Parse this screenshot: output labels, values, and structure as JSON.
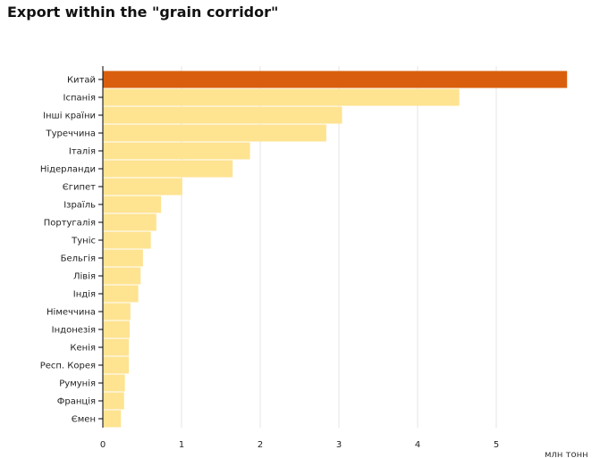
{
  "title": "Export within the \"grain corridor\"",
  "colors": {
    "highlight": "#d95f0e",
    "bar": "#fee391",
    "grid": "#e6e6e6",
    "axis": "#000000"
  },
  "chart_data": {
    "type": "bar",
    "orientation": "horizontal",
    "title": "Export within the \"grain corridor\"",
    "xlabel": "млн тонн",
    "ylabel": "",
    "xlim": [
      0,
      5.9
    ],
    "xticks": [
      0,
      1,
      2,
      3,
      4,
      5
    ],
    "grid": true,
    "categories": [
      "Китай",
      "Іспанія",
      "Інші країни",
      "Туреччина",
      "Італія",
      "Нідерланди",
      "Єгипет",
      "Ізраїль",
      "Португалія",
      "Туніс",
      "Бельгія",
      "Лівія",
      "Індія",
      "Німеччина",
      "Індонезія",
      "Кенія",
      "Респ. Корея",
      "Румунія",
      "Франція",
      "Ємен"
    ],
    "values": [
      5.9,
      4.53,
      3.04,
      2.84,
      1.87,
      1.65,
      1.01,
      0.74,
      0.68,
      0.61,
      0.51,
      0.48,
      0.45,
      0.35,
      0.34,
      0.33,
      0.33,
      0.28,
      0.27,
      0.23
    ],
    "highlight_index": 0
  }
}
